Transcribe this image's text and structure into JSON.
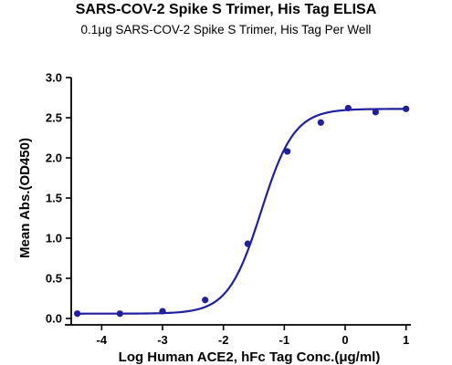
{
  "chart_data": {
    "type": "scatter",
    "title": "SARS-COV-2 Spike S Trimer, His Tag ELISA",
    "subtitle": "0.1μg SARS-COV-2 Spike S Trimer, His Tag Per Well",
    "xlabel": "Log Human ACE2, hFc Tag Conc.(μg/ml)",
    "ylabel": "Mean Abs.(OD450)",
    "xlim": [
      -4.5,
      1.05
    ],
    "ylim": [
      0,
      3.0
    ],
    "xticks": [
      -4,
      -3,
      -2,
      -1,
      0,
      1
    ],
    "yticks": [
      0.0,
      0.5,
      1.0,
      1.5,
      2.0,
      2.5,
      3.0
    ],
    "xtick_labels": [
      "-4",
      "-3",
      "-2",
      "-1",
      "0",
      "1"
    ],
    "ytick_labels": [
      "0.0",
      "0.5",
      "1.0",
      "1.5",
      "2.0",
      "2.5",
      "3.0"
    ],
    "grid": false,
    "series": [
      {
        "type": "scatter",
        "color": "#1f1fa0",
        "x": [
          -4.4,
          -3.7,
          -3.0,
          -2.3,
          -1.6,
          -0.95,
          -0.4,
          0.05,
          0.5,
          1.0
        ],
        "y": [
          0.06,
          0.06,
          0.09,
          0.23,
          0.93,
          2.08,
          2.44,
          2.62,
          2.57,
          2.61
        ]
      },
      {
        "type": "line",
        "color": "#1f1fa0",
        "fit": "4PL",
        "bottom": 0.06,
        "top": 2.61,
        "logEC50": -1.38,
        "hill": 1.6,
        "xrange": [
          -4.4,
          1.0
        ]
      }
    ]
  }
}
